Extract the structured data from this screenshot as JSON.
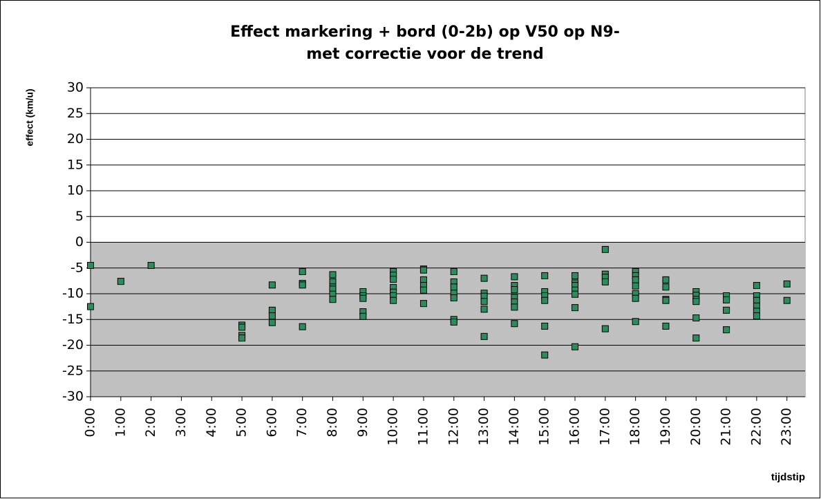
{
  "chart_data": {
    "type": "scatter",
    "title": [
      "Effect markering + bord (0-2b) op V50 op N9-",
      "met correctie voor de trend"
    ],
    "x_label": "tijdstip",
    "y_label": "effect (km/u)",
    "color": "#2e8b5e",
    "grid": true,
    "shade_below": 0,
    "xlim": [
      0,
      23.6
    ],
    "xticks": [
      {
        "value": 0,
        "label": "0:00"
      },
      {
        "value": 1,
        "label": "1:00"
      },
      {
        "value": 2,
        "label": "2:00"
      },
      {
        "value": 3,
        "label": "3:00"
      },
      {
        "value": 4,
        "label": "4:00"
      },
      {
        "value": 5,
        "label": "5:00"
      },
      {
        "value": 6,
        "label": "6:00"
      },
      {
        "value": 7,
        "label": "7:00"
      },
      {
        "value": 8,
        "label": "8:00"
      },
      {
        "value": 9,
        "label": "9:00"
      },
      {
        "value": 10,
        "label": "10:00"
      },
      {
        "value": 11,
        "label": "11:00"
      },
      {
        "value": 12,
        "label": "12:00"
      },
      {
        "value": 13,
        "label": "13:00"
      },
      {
        "value": 14,
        "label": "14:00"
      },
      {
        "value": 15,
        "label": "15:00"
      },
      {
        "value": 16,
        "label": "16:00"
      },
      {
        "value": 17,
        "label": "17:00"
      },
      {
        "value": 18,
        "label": "18:00"
      },
      {
        "value": 19,
        "label": "19:00"
      },
      {
        "value": 20,
        "label": "20:00"
      },
      {
        "value": 21,
        "label": "21:00"
      },
      {
        "value": 22,
        "label": "22:00"
      },
      {
        "value": 23,
        "label": "23:00"
      }
    ],
    "ylim": [
      -30,
      30
    ],
    "yticks": [
      -30,
      -25,
      -20,
      -15,
      -10,
      -5,
      0,
      5,
      10,
      15,
      20,
      25,
      30
    ],
    "x": [
      0,
      0,
      1,
      2,
      5,
      5,
      5,
      5,
      6,
      6,
      6,
      6,
      7,
      7,
      7,
      7,
      8,
      8,
      8,
      8,
      8,
      8,
      9,
      9,
      9,
      9,
      9,
      10,
      10,
      10,
      10,
      10,
      10,
      10,
      11,
      11,
      11,
      11,
      11,
      11,
      12,
      12,
      12,
      12,
      12,
      12,
      12,
      13,
      13,
      13,
      13,
      13,
      13,
      14,
      14,
      14,
      14,
      14,
      14,
      14,
      15,
      15,
      15,
      15,
      15,
      15,
      16,
      16,
      16,
      16,
      16,
      16,
      16,
      17,
      17,
      17,
      17,
      17,
      18,
      18,
      18,
      18,
      18,
      18,
      18,
      19,
      19,
      19,
      19,
      19,
      20,
      20,
      20,
      20,
      20,
      20,
      21,
      21,
      21,
      21,
      22,
      22,
      22,
      22,
      22,
      22,
      23,
      23
    ],
    "values": [
      -4.5,
      -12.5,
      -7.6,
      -4.5,
      -16.1,
      -16.5,
      -18.1,
      -18.6,
      -8.3,
      -13.2,
      -14.3,
      -15.6,
      -5.7,
      -8.0,
      -8.3,
      -16.4,
      -6.3,
      -7.7,
      -8.7,
      -9.1,
      -10.1,
      -11.1,
      -9.6,
      -10.4,
      -10.9,
      -13.5,
      -14.4,
      -5.7,
      -6.4,
      -7.2,
      -8.8,
      -9.7,
      -10.4,
      -11.3,
      -5.2,
      -5.4,
      -7.3,
      -8.4,
      -9.3,
      -11.9,
      -5.7,
      -7.7,
      -8.7,
      -9.9,
      -10.8,
      -15.0,
      -15.5,
      -7.0,
      -9.9,
      -10.5,
      -11.5,
      -13.0,
      -18.3,
      -6.7,
      -8.4,
      -9.2,
      -10.7,
      -11.6,
      -12.6,
      -15.8,
      -6.5,
      -9.6,
      -10.4,
      -11.3,
      -16.3,
      -21.9,
      -6.5,
      -7.9,
      -8.4,
      -9.3,
      -10.1,
      -12.7,
      -20.3,
      -1.4,
      -6.2,
      -6.8,
      -7.7,
      -16.8,
      -5.7,
      -6.5,
      -7.3,
      -8.5,
      -10.0,
      -10.9,
      -15.4,
      -7.3,
      -8.7,
      -11.1,
      -11.3,
      -16.3,
      -9.6,
      -10.3,
      -11.1,
      -11.5,
      -14.7,
      -18.6,
      -10.4,
      -11.2,
      -13.2,
      -17.0,
      -8.4,
      -10.4,
      -11.3,
      -12.4,
      -13.4,
      -14.3,
      -8.1,
      -11.3
    ]
  }
}
